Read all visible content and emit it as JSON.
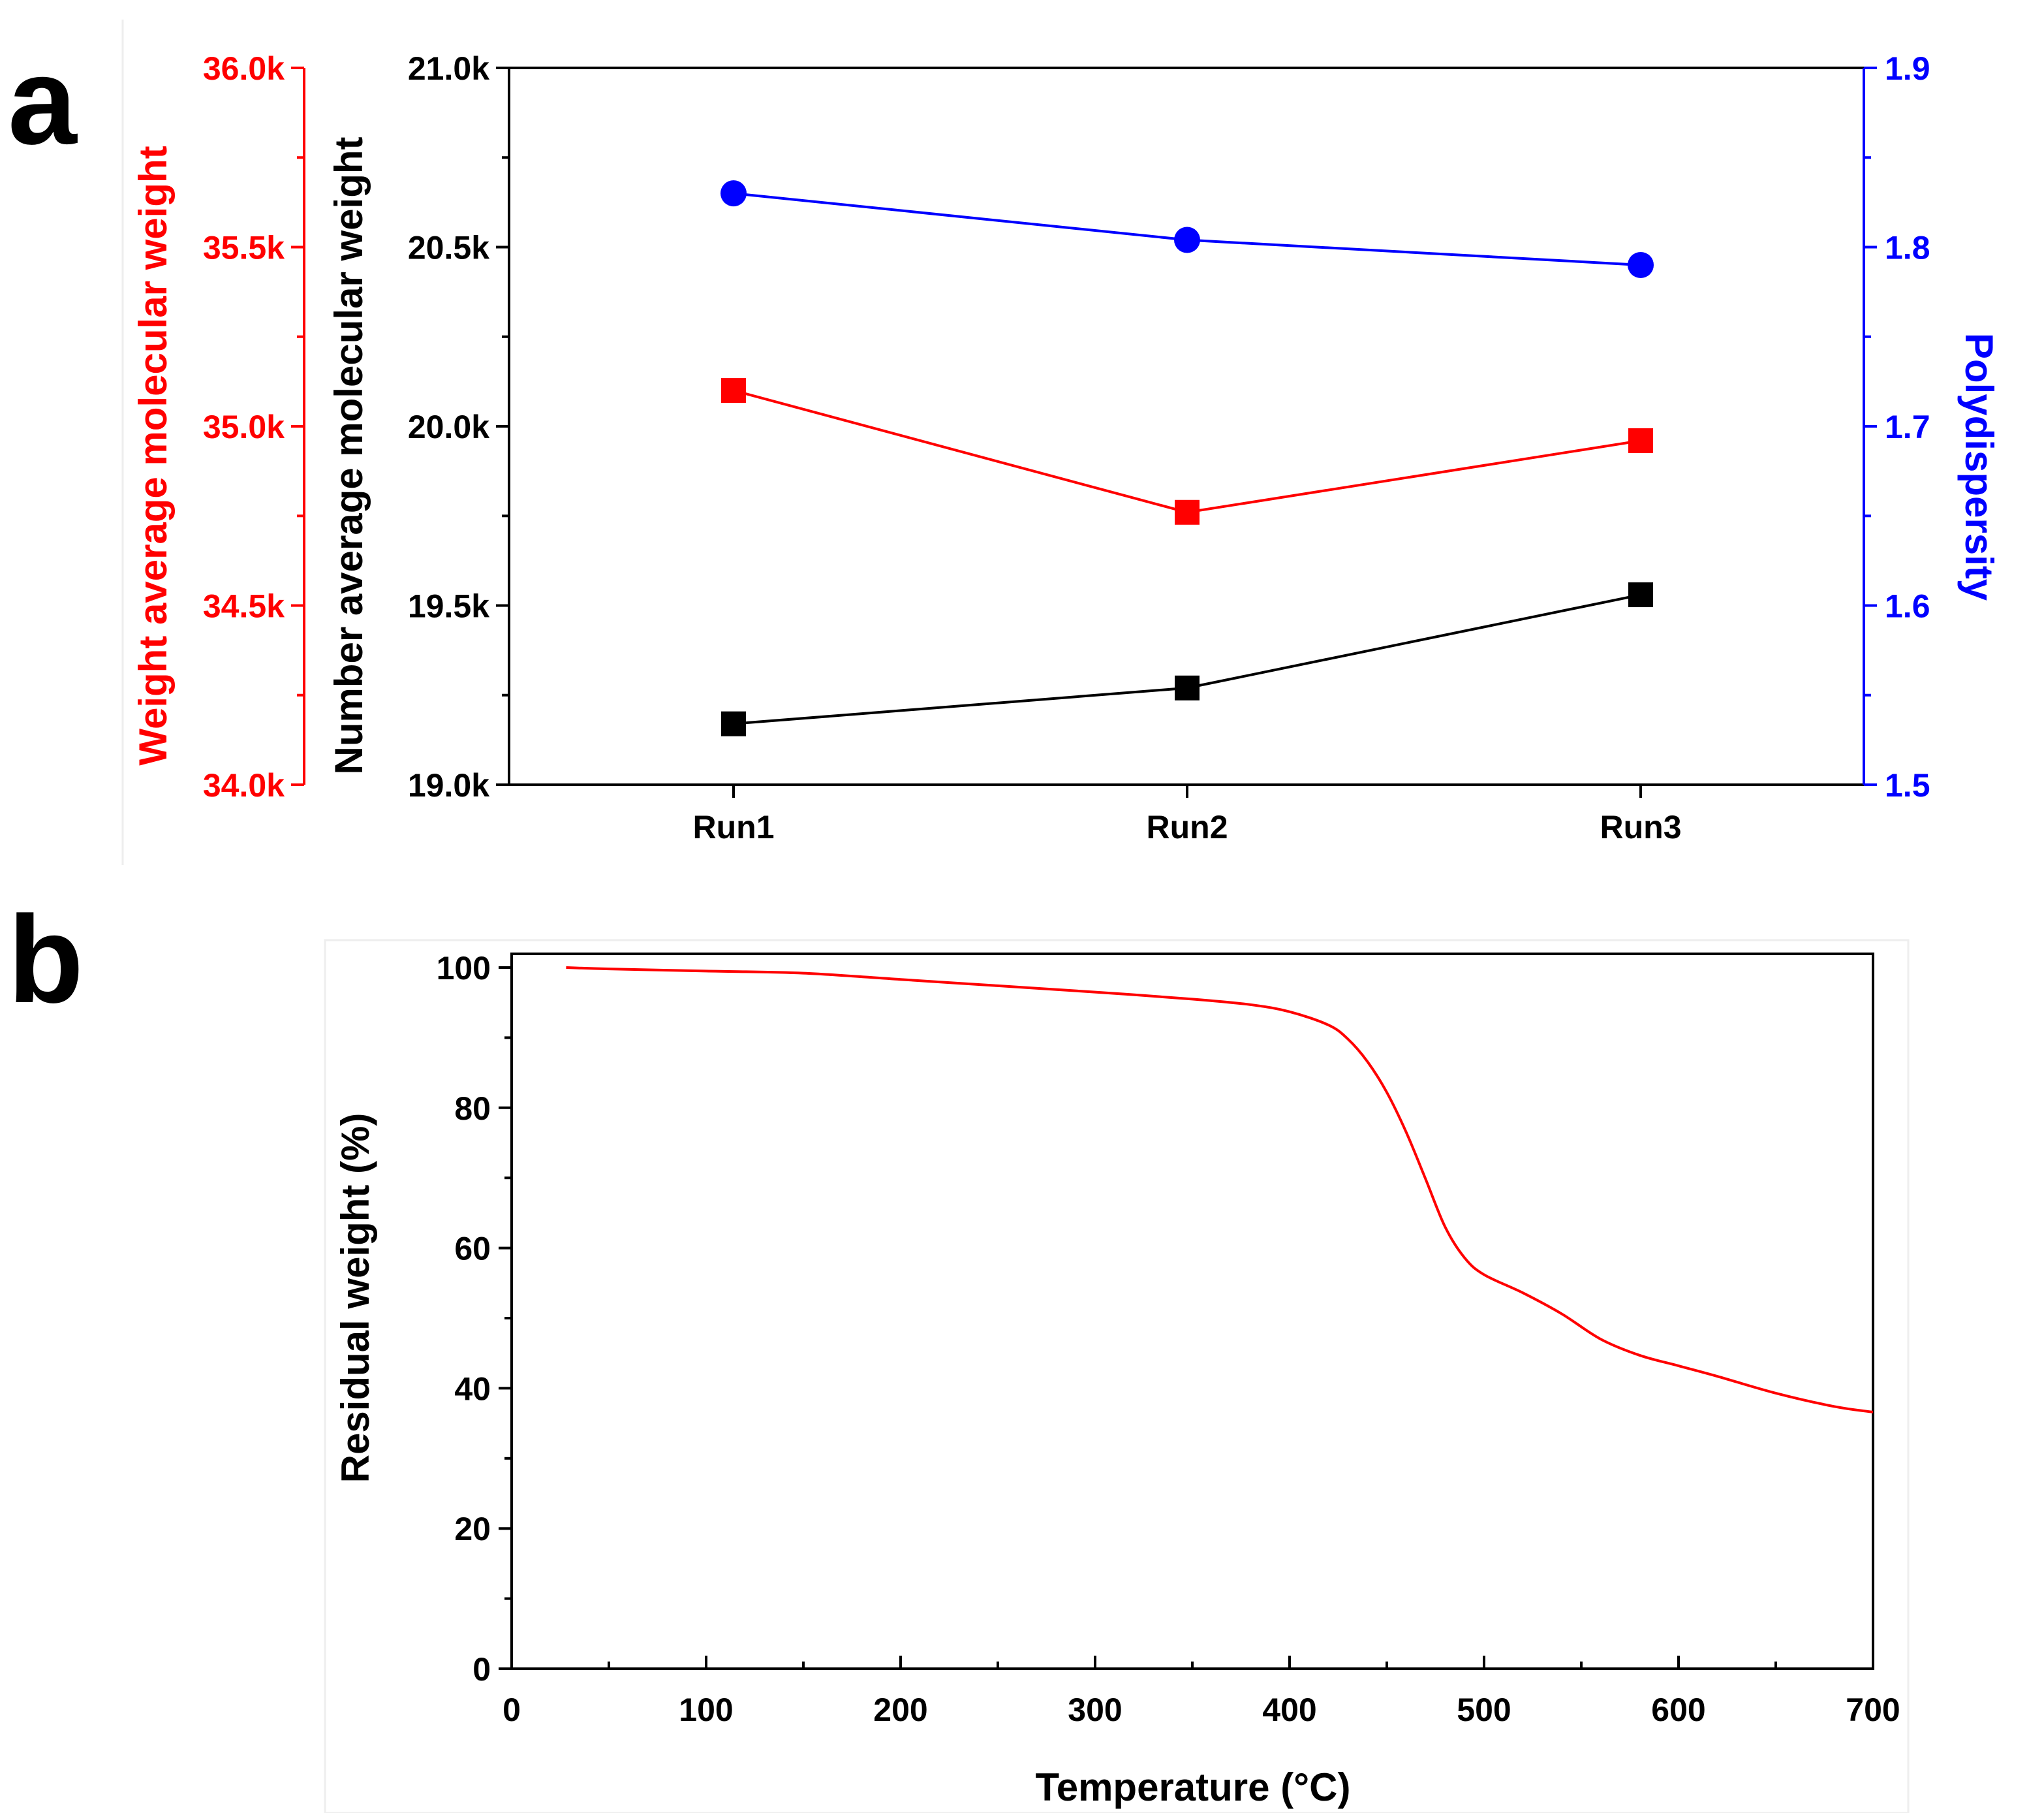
{
  "colors": {
    "red": "#ff0000",
    "blue": "#0000ff",
    "black": "#000000"
  },
  "panels": {
    "a_letter": "a",
    "b_letter": "b"
  },
  "chart_data": [
    {
      "id": "a",
      "type": "line",
      "categories": [
        "Run1",
        "Run2",
        "Run3"
      ],
      "axes": {
        "weight_avg": {
          "title": "Weight average molecular weight",
          "range": [
            34000,
            36000
          ],
          "ticks": [
            34000,
            34500,
            35000,
            35500,
            36000
          ],
          "tick_labels": [
            "34.0k",
            "34.5k",
            "35.0k",
            "35.5k",
            "36.0k"
          ],
          "color": "#ff0000",
          "side": "left-outer"
        },
        "number_avg": {
          "title": "Number average molecular weight",
          "range": [
            19000,
            21000
          ],
          "ticks": [
            19000,
            19500,
            20000,
            20500,
            21000
          ],
          "tick_labels": [
            "19.0k",
            "19.5k",
            "20.0k",
            "20.5k",
            "21.0k"
          ],
          "color": "#000000",
          "side": "left"
        },
        "polydispersity": {
          "title": "Polydispersity",
          "range": [
            1.5,
            1.9
          ],
          "ticks": [
            1.5,
            1.6,
            1.7,
            1.8,
            1.9
          ],
          "tick_labels": [
            "1.5",
            "1.6",
            "1.7",
            "1.8",
            "1.9"
          ],
          "color": "#0000ff",
          "side": "right"
        }
      },
      "series": [
        {
          "name": "Weight average molecular weight",
          "axis": "weight_avg",
          "marker": "square",
          "color": "#ff0000",
          "values": [
            35100,
            34760,
            34960
          ]
        },
        {
          "name": "Number average molecular weight",
          "axis": "number_avg",
          "marker": "square",
          "color": "#000000",
          "values": [
            19170,
            19270,
            19530
          ]
        },
        {
          "name": "Polydispersity",
          "axis": "polydispersity",
          "marker": "circle",
          "color": "#0000ff",
          "values": [
            1.83,
            1.804,
            1.79
          ]
        }
      ]
    },
    {
      "id": "b",
      "type": "line",
      "xlabel": "Temperature (°C)",
      "ylabel": "Residual weight (%)",
      "xlim": [
        0,
        700
      ],
      "ylim": [
        0,
        100
      ],
      "xticks": [
        0,
        100,
        200,
        300,
        400,
        500,
        600,
        700
      ],
      "yticks": [
        0,
        20,
        40,
        60,
        80,
        100
      ],
      "series": [
        {
          "name": "Residual weight",
          "color": "#ff0000",
          "x": [
            28,
            50,
            100,
            150,
            200,
            250,
            300,
            350,
            380,
            400,
            420,
            430,
            440,
            450,
            460,
            470,
            480,
            490,
            500,
            520,
            540,
            560,
            580,
            600,
            620,
            650,
            680,
            700
          ],
          "y": [
            100,
            99.8,
            99.5,
            99.2,
            98.3,
            97.4,
            96.5,
            95.5,
            94.7,
            93.7,
            91.8,
            89.8,
            86.6,
            82.2,
            76.5,
            69.8,
            63.0,
            58.6,
            56.2,
            53.6,
            50.6,
            47.0,
            44.7,
            43.2,
            41.7,
            39.3,
            37.4,
            36.6
          ]
        }
      ]
    }
  ]
}
